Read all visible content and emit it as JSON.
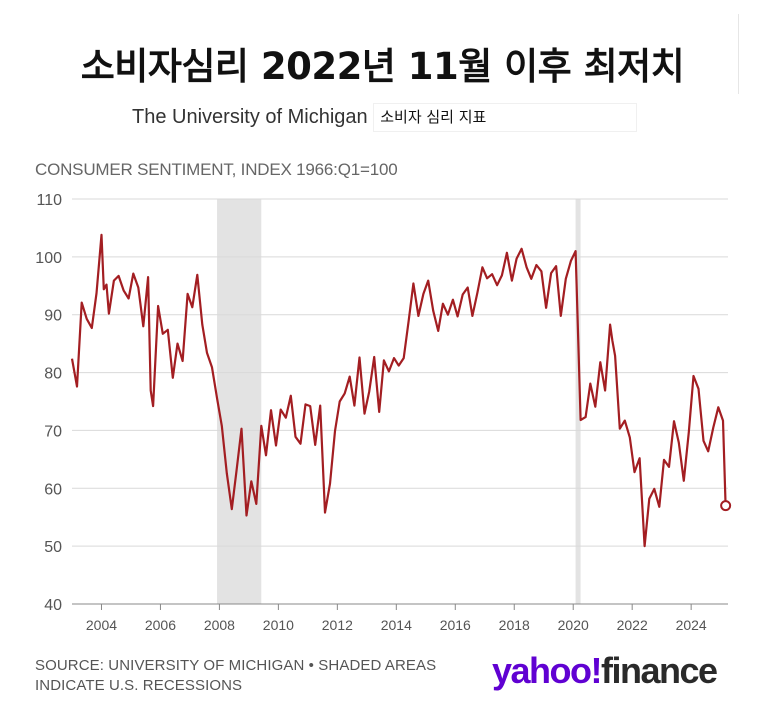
{
  "header": {
    "title": "소비자심리 2022년 11월 이후 최저치",
    "subtitle": "The University of Michigan",
    "subtitle_ko": "소비자 심리 지표"
  },
  "footer": {
    "source_line1": "SOURCE: UNIVERSITY OF MICHIGAN • SHADED AREAS",
    "source_line2": "INDICATE U.S. RECESSIONS"
  },
  "logo": {
    "yahoo": "yahoo!",
    "finance": "finance"
  },
  "colors": {
    "line": "#a31e22",
    "recession": "#e3e3e3",
    "grid": "#d9d9d9",
    "axis": "#555555"
  },
  "chart_data": {
    "type": "line",
    "ylabel": "CONSUMER SENTIMENT, INDEX 1966:Q1=100",
    "ylim": [
      40,
      110
    ],
    "yticks": [
      40,
      50,
      60,
      70,
      80,
      90,
      100,
      110
    ],
    "xlim": [
      2003.0,
      2025.25
    ],
    "xticks": [
      2004,
      2006,
      2008,
      2010,
      2012,
      2014,
      2016,
      2018,
      2020,
      2022,
      2024
    ],
    "grid": true,
    "recessions": [
      [
        2007.92,
        2009.42
      ],
      [
        2020.08,
        2020.25
      ]
    ],
    "series": [
      {
        "x": [
          2003.0,
          2003.17,
          2003.33,
          2003.5,
          2003.67,
          2003.83,
          2004.0,
          2004.08,
          2004.17,
          2004.25,
          2004.42,
          2004.58,
          2004.75,
          2004.92,
          2005.08,
          2005.25,
          2005.42,
          2005.58,
          2005.67,
          2005.75,
          2005.92,
          2006.08,
          2006.25,
          2006.42,
          2006.58,
          2006.75,
          2006.92,
          2007.08,
          2007.25,
          2007.42,
          2007.58,
          2007.75,
          2007.92,
          2008.08,
          2008.25,
          2008.42,
          2008.58,
          2008.75,
          2008.92,
          2009.08,
          2009.25,
          2009.42,
          2009.58,
          2009.75,
          2009.92,
          2010.08,
          2010.25,
          2010.42,
          2010.58,
          2010.75,
          2010.92,
          2011.08,
          2011.25,
          2011.42,
          2011.58,
          2011.75,
          2011.92,
          2012.08,
          2012.25,
          2012.42,
          2012.58,
          2012.75,
          2012.92,
          2013.08,
          2013.25,
          2013.42,
          2013.58,
          2013.75,
          2013.92,
          2014.08,
          2014.25,
          2014.42,
          2014.58,
          2014.75,
          2014.92,
          2015.08,
          2015.25,
          2015.42,
          2015.58,
          2015.75,
          2015.92,
          2016.08,
          2016.25,
          2016.42,
          2016.58,
          2016.75,
          2016.92,
          2017.08,
          2017.25,
          2017.42,
          2017.58,
          2017.75,
          2017.92,
          2018.08,
          2018.25,
          2018.42,
          2018.58,
          2018.75,
          2018.92,
          2019.08,
          2019.25,
          2019.42,
          2019.58,
          2019.75,
          2019.92,
          2020.08,
          2020.25,
          2020.42,
          2020.58,
          2020.75,
          2020.92,
          2021.08,
          2021.25,
          2021.33,
          2021.42,
          2021.58,
          2021.75,
          2021.92,
          2022.08,
          2022.25,
          2022.42,
          2022.58,
          2022.75,
          2022.92,
          2023.08,
          2023.25,
          2023.42,
          2023.58,
          2023.75,
          2023.92,
          2024.08,
          2024.25,
          2024.42,
          2024.58,
          2024.75,
          2024.92,
          2025.08,
          2025.17
        ],
        "y": [
          82.4,
          77.6,
          92.1,
          89.3,
          87.7,
          93.7,
          103.8,
          94.4,
          95.2,
          90.2,
          95.9,
          96.7,
          94.2,
          92.8,
          97.1,
          94.7,
          88.0,
          96.5,
          76.9,
          74.2,
          91.5,
          86.7,
          87.4,
          79.1,
          85.0,
          82.0,
          93.6,
          91.3,
          96.9,
          88.3,
          83.4,
          80.9,
          75.5,
          70.8,
          62.6,
          56.4,
          63.0,
          70.3,
          55.3,
          61.2,
          57.3,
          70.8,
          65.7,
          73.5,
          67.4,
          73.6,
          72.2,
          76.0,
          68.9,
          67.7,
          74.5,
          74.2,
          67.5,
          74.3,
          55.8,
          60.8,
          69.9,
          75.0,
          76.4,
          79.3,
          74.3,
          82.6,
          72.9,
          76.7,
          82.7,
          73.2,
          82.1,
          80.2,
          82.5,
          81.2,
          82.5,
          89.0,
          95.4,
          89.8,
          93.6,
          95.9,
          90.7,
          87.2,
          91.9,
          90.0,
          92.6,
          89.7,
          93.5,
          94.7,
          89.8,
          93.8,
          98.2,
          96.3,
          97.0,
          95.1,
          96.8,
          100.7,
          95.9,
          99.7,
          101.4,
          98.2,
          96.2,
          98.6,
          97.5,
          91.2,
          97.2,
          98.4,
          89.8,
          96.2,
          99.3,
          101.0,
          71.8,
          72.3,
          78.1,
          74.1,
          81.8,
          76.9,
          88.3,
          85.5,
          82.9,
          70.3,
          71.7,
          68.8,
          62.8,
          65.2,
          50.0,
          58.2,
          59.9,
          56.8,
          64.9,
          63.7,
          71.6,
          67.9,
          61.3,
          69.7,
          79.4,
          77.2,
          68.2,
          66.4,
          70.5,
          74.0,
          71.7,
          57.0
        ]
      }
    ]
  }
}
